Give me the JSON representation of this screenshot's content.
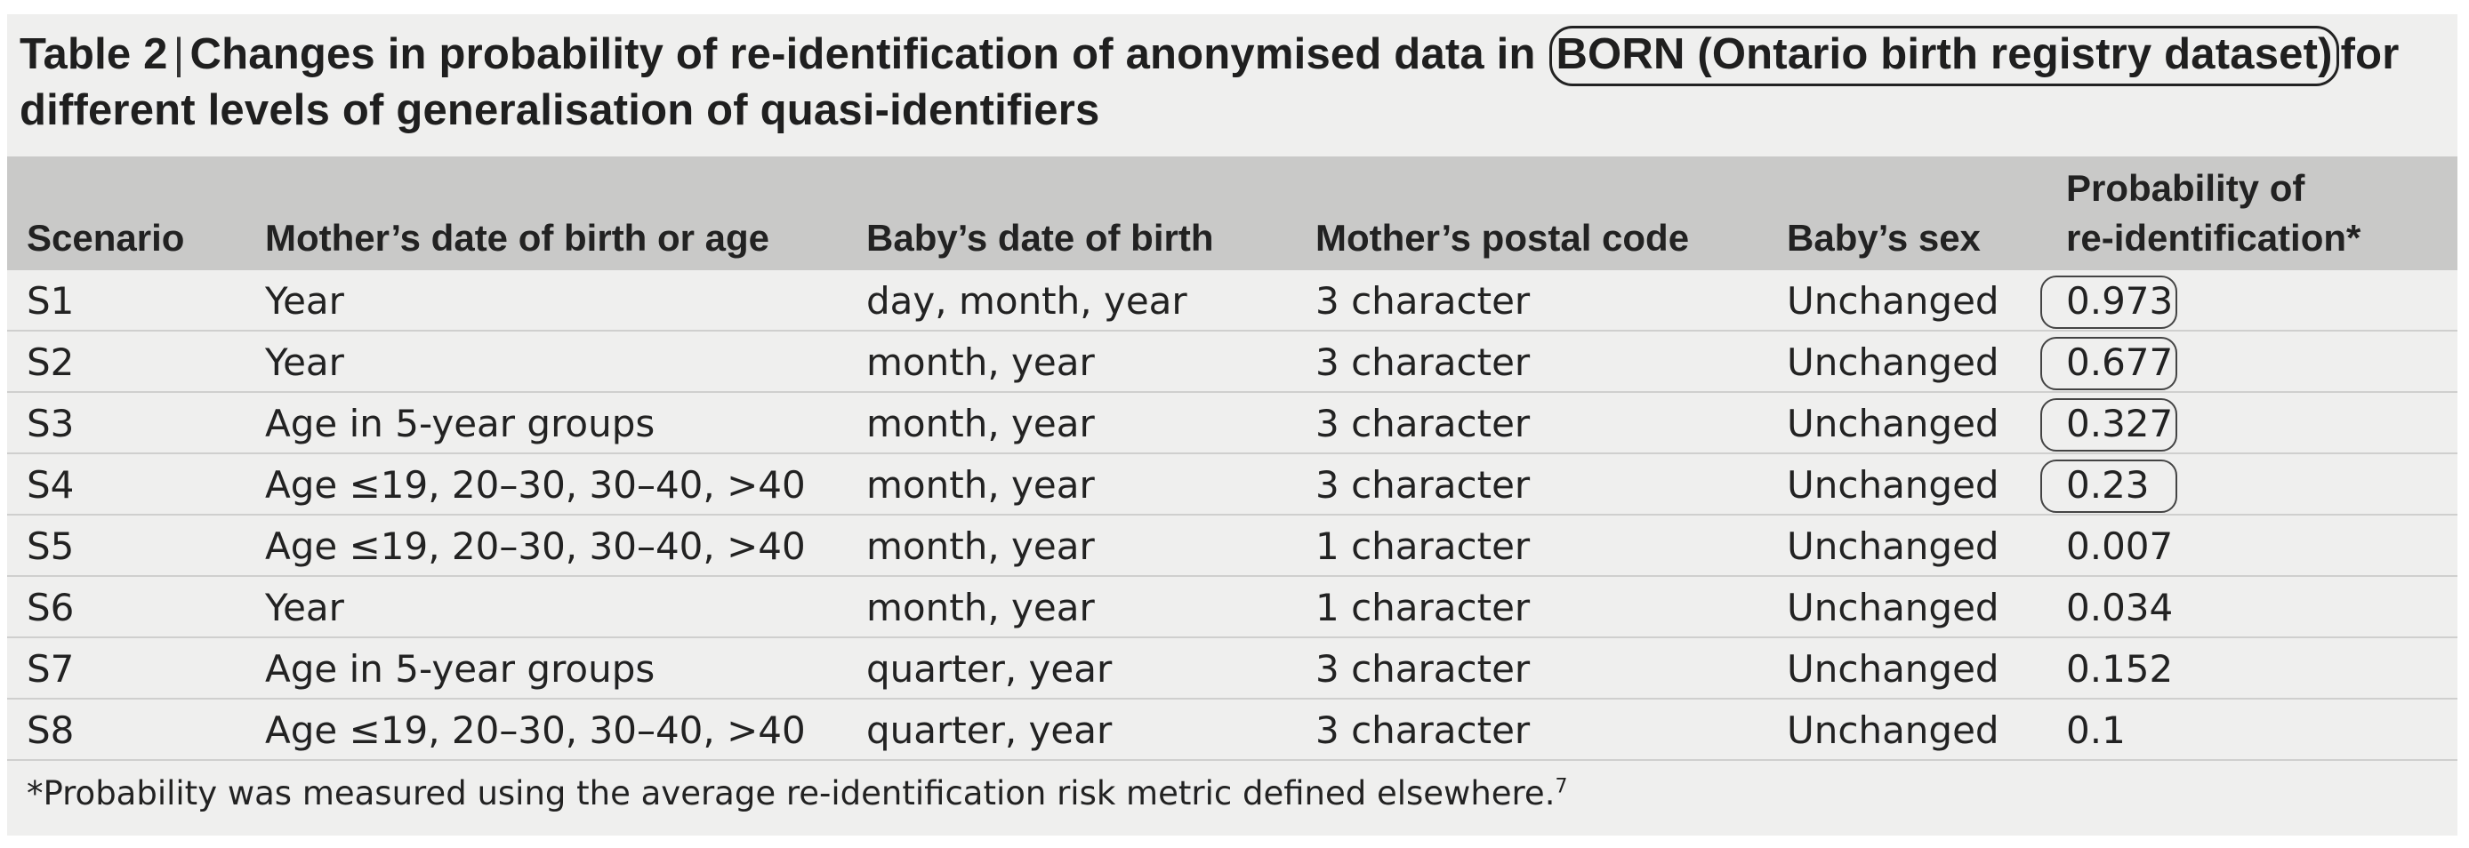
{
  "title": {
    "label": "Table 2",
    "sep": "|",
    "pre": "Changes in probability of re-identification of anonymised data in",
    "highlight": "BORN (Ontario birth registry dataset)",
    "post": "for",
    "line2": "different levels of generalisation of quasi-identifiers"
  },
  "headers": {
    "scenario": "Scenario",
    "mother_dob": "Mother’s date of birth or age",
    "baby_dob": "Baby’s date of birth",
    "postal": "Mother’s postal code",
    "sex": "Baby’s sex",
    "prob_line1": "Probability of",
    "prob_line2": "re-identification*"
  },
  "rows": [
    {
      "scenario": "S1",
      "mother": "Year",
      "baby": "day, month, year",
      "postal": "3 character",
      "sex": "Unchanged",
      "prob": "0.973"
    },
    {
      "scenario": "S2",
      "mother": "Year",
      "baby": "month, year",
      "postal": "3 character",
      "sex": "Unchanged",
      "prob": "0.677"
    },
    {
      "scenario": "S3",
      "mother": "Age in 5-year groups",
      "baby": "month, year",
      "postal": "3 character",
      "sex": "Unchanged",
      "prob": "0.327"
    },
    {
      "scenario": "S4",
      "mother": "Age ≤19, 20–30, 30–40, >40",
      "baby": "month, year",
      "postal": "3 character",
      "sex": "Unchanged",
      "prob": "0.23"
    },
    {
      "scenario": "S5",
      "mother": "Age ≤19, 20–30, 30–40, >40",
      "baby": "month, year",
      "postal": "1 character",
      "sex": "Unchanged",
      "prob": "0.007"
    },
    {
      "scenario": "S6",
      "mother": "Year",
      "baby": "month, year",
      "postal": "1 character",
      "sex": "Unchanged",
      "prob": "0.034"
    },
    {
      "scenario": "S7",
      "mother": "Age in 5-year groups",
      "baby": "quarter, year",
      "postal": "3 character",
      "sex": "Unchanged",
      "prob": "0.152"
    },
    {
      "scenario": "S8",
      "mother": "Age ≤19, 20–30, 30–40, >40",
      "baby": "quarter, year",
      "postal": "3 character",
      "sex": "Unchanged",
      "prob": "0.1"
    }
  ],
  "footnote": {
    "text": "*Probability was measured using the average re-identification risk metric defined elsewhere.",
    "ref": "7"
  }
}
